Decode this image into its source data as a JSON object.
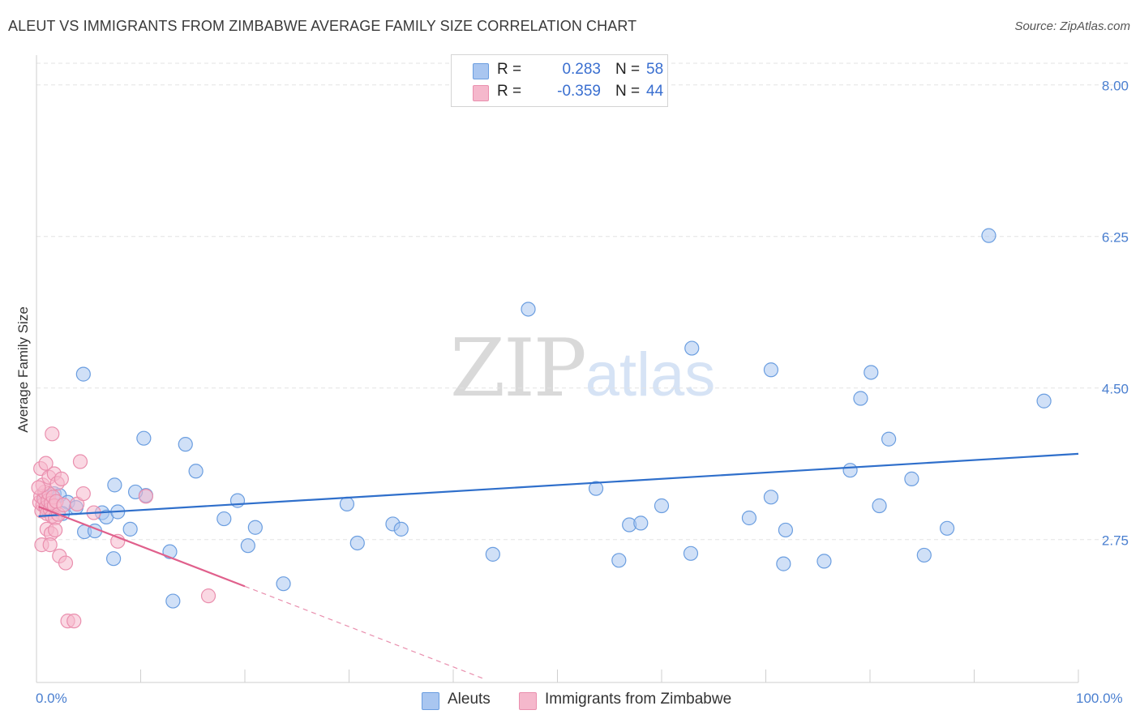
{
  "title": "ALEUT VS IMMIGRANTS FROM ZIMBABWE AVERAGE FAMILY SIZE CORRELATION CHART",
  "source": "Source: ZipAtlas.com",
  "watermark": {
    "zip": "ZIP",
    "atlas": "atlas"
  },
  "colors": {
    "blue_fill": "#a9c6f0",
    "blue_stroke": "#6b9ee0",
    "blue_line": "#2f6fcb",
    "pink_fill": "#f5b8cc",
    "pink_stroke": "#ea8fae",
    "pink_line": "#e0608c",
    "axis_text": "#4a7fd0",
    "grid": "#e3e3e3"
  },
  "legend": {
    "rows": [
      {
        "r_label": "R =",
        "r_value": "0.283",
        "n_label": "N =",
        "n_value": "58",
        "color": "#a9c6f0",
        "border": "#6b9ee0"
      },
      {
        "r_label": "R =",
        "r_value": "-0.359",
        "n_label": "N =",
        "n_value": "44",
        "color": "#f5b8cc",
        "border": "#ea8fae"
      }
    ]
  },
  "bottom_legend": [
    {
      "label": "Aleuts",
      "color": "#a9c6f0",
      "border": "#6b9ee0"
    },
    {
      "label": "Immigrants from Zimbabwe",
      "color": "#f5b8cc",
      "border": "#ea8fae"
    }
  ],
  "chart_data": {
    "type": "scatter",
    "title": "ALEUT VS IMMIGRANTS FROM ZIMBABWE AVERAGE FAMILY SIZE CORRELATION CHART",
    "xlabel": "",
    "ylabel": "Average Family Size",
    "xlim": [
      0,
      100
    ],
    "ylim": [
      1.1,
      8.25
    ],
    "x_tick_labels": [
      "0.0%",
      "100.0%"
    ],
    "y_ticks": [
      2.75,
      4.5,
      6.25,
      8.0
    ],
    "y_tick_labels": [
      "2.75",
      "4.50",
      "6.25",
      "8.00"
    ],
    "grid": true,
    "series": [
      {
        "name": "Aleuts",
        "r": 0.283,
        "n": 58,
        "trend": {
          "x0": 0.2,
          "y0": 3.02,
          "x1": 100,
          "y1": 3.74,
          "dashed_to": null
        },
        "points": [
          [
            0.8,
            3.22
          ],
          [
            1.2,
            3.25
          ],
          [
            1.7,
            3.28
          ],
          [
            2.2,
            3.26
          ],
          [
            3.0,
            3.18
          ],
          [
            3.8,
            3.12
          ],
          [
            4.5,
            4.66
          ],
          [
            4.6,
            2.84
          ],
          [
            5.6,
            2.85
          ],
          [
            6.3,
            3.06
          ],
          [
            6.7,
            3.01
          ],
          [
            7.4,
            2.53
          ],
          [
            7.5,
            3.38
          ],
          [
            7.8,
            3.07
          ],
          [
            9.0,
            2.87
          ],
          [
            10.3,
            3.92
          ],
          [
            10.5,
            3.26
          ],
          [
            12.8,
            2.61
          ],
          [
            13.1,
            2.04
          ],
          [
            14.3,
            3.85
          ],
          [
            15.3,
            3.54
          ],
          [
            18.0,
            2.99
          ],
          [
            19.3,
            3.2
          ],
          [
            20.3,
            2.68
          ],
          [
            21.0,
            2.89
          ],
          [
            23.7,
            2.24
          ],
          [
            29.8,
            3.16
          ],
          [
            30.8,
            2.71
          ],
          [
            34.2,
            2.93
          ],
          [
            35.0,
            2.87
          ],
          [
            43.8,
            2.58
          ],
          [
            47.2,
            5.41
          ],
          [
            53.7,
            3.34
          ],
          [
            55.9,
            2.51
          ],
          [
            56.9,
            2.92
          ],
          [
            58.0,
            2.94
          ],
          [
            60.0,
            3.14
          ],
          [
            62.8,
            2.59
          ],
          [
            62.9,
            4.96
          ],
          [
            68.4,
            3.0
          ],
          [
            70.5,
            4.71
          ],
          [
            70.5,
            3.24
          ],
          [
            71.7,
            2.47
          ],
          [
            71.9,
            2.86
          ],
          [
            75.6,
            2.5
          ],
          [
            78.1,
            3.55
          ],
          [
            79.1,
            4.38
          ],
          [
            80.1,
            4.68
          ],
          [
            80.9,
            3.14
          ],
          [
            81.8,
            3.91
          ],
          [
            84.0,
            3.45
          ],
          [
            85.2,
            2.57
          ],
          [
            87.4,
            2.88
          ],
          [
            91.4,
            6.26
          ],
          [
            96.7,
            4.35
          ],
          [
            9.5,
            3.3
          ],
          [
            1.0,
            3.1
          ],
          [
            2.5,
            3.05
          ]
        ]
      },
      {
        "name": "Immigrants from Zimbabwe",
        "r": -0.359,
        "n": 44,
        "trend": {
          "x0": 0.2,
          "y0": 3.13,
          "x1": 20,
          "y1": 2.21,
          "dashed_to": [
            43,
            1.14
          ]
        },
        "points": [
          [
            0.3,
            3.18
          ],
          [
            0.4,
            3.25
          ],
          [
            0.5,
            3.08
          ],
          [
            0.6,
            3.15
          ],
          [
            0.7,
            3.22
          ],
          [
            0.8,
            3.3
          ],
          [
            0.9,
            3.12
          ],
          [
            1.0,
            3.05
          ],
          [
            1.1,
            3.2
          ],
          [
            1.2,
            3.28
          ],
          [
            1.3,
            3.1
          ],
          [
            1.4,
            3.17
          ],
          [
            1.5,
            3.02
          ],
          [
            1.6,
            3.24
          ],
          [
            1.7,
            3.14
          ],
          [
            1.8,
            3.0
          ],
          [
            1.9,
            3.19
          ],
          [
            0.4,
            3.57
          ],
          [
            0.6,
            3.38
          ],
          [
            0.9,
            3.63
          ],
          [
            1.0,
            2.87
          ],
          [
            1.2,
            3.47
          ],
          [
            1.4,
            2.82
          ],
          [
            1.5,
            3.97
          ],
          [
            1.7,
            3.51
          ],
          [
            1.8,
            2.86
          ],
          [
            0.5,
            2.69
          ],
          [
            1.3,
            2.69
          ],
          [
            2.0,
            3.4
          ],
          [
            2.1,
            3.04
          ],
          [
            2.2,
            2.56
          ],
          [
            2.4,
            3.45
          ],
          [
            2.6,
            3.15
          ],
          [
            2.8,
            2.48
          ],
          [
            3.0,
            1.81
          ],
          [
            3.6,
            1.81
          ],
          [
            3.9,
            3.16
          ],
          [
            4.2,
            3.65
          ],
          [
            4.5,
            3.28
          ],
          [
            5.5,
            3.06
          ],
          [
            7.8,
            2.73
          ],
          [
            10.5,
            3.25
          ],
          [
            16.5,
            2.1
          ],
          [
            0.2,
            3.35
          ]
        ]
      }
    ]
  }
}
